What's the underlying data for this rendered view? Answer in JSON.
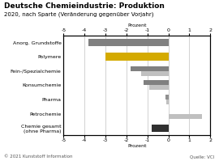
{
  "chart_data": {
    "type": "bar",
    "orientation": "horizontal",
    "title": "Deutsche Chemieindustrie: Produktion",
    "subtitle": "2020, nach Sparte (Veränderung gegenüber Vorjahr)",
    "categories": [
      "Anorg. Grundstoffe",
      "Polymere",
      "Fein-/Spezialchemie",
      "Konsumchemie",
      "Pharma",
      "Petrochemie",
      "Chemie gesamt\n(ohne Pharma)"
    ],
    "series": [
      {
        "values": [
          -3.8,
          -3.0,
          -1.8,
          -1.2,
          -0.15,
          0.0,
          -0.8
        ],
        "colors": [
          "#808080",
          "#d4aa00",
          "#808080",
          "#808080",
          "#909090",
          "#d4aa00",
          "#303030"
        ]
      },
      {
        "values": [
          null,
          null,
          -1.3,
          -0.9,
          -0.1,
          1.6,
          null
        ],
        "colors": [
          null,
          null,
          "#c0c0c0",
          "#c0c0c0",
          "#c0c0c0",
          "#c0c0c0",
          null
        ]
      }
    ],
    "xlabel": "Prozent",
    "xlim": [
      -5,
      2
    ],
    "xticks": [
      -5,
      -4,
      -3,
      -2,
      -1,
      0,
      1,
      2
    ],
    "grid": true,
    "annotations": [
      "© 2021 Kunststoff Information",
      "Quelle: VCI"
    ]
  }
}
